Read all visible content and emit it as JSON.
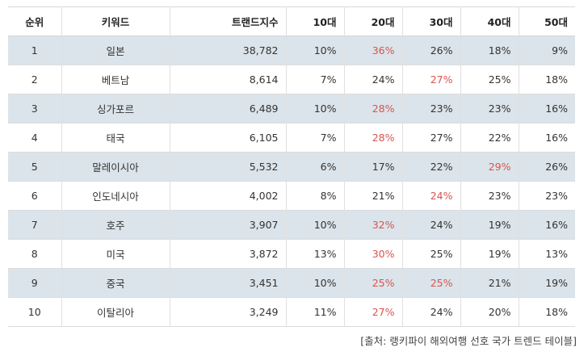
{
  "table": {
    "headers": [
      "순위",
      "키워드",
      "트랜드지수",
      "10대",
      "20대",
      "30대",
      "40대",
      "50대"
    ],
    "rows": [
      {
        "rank": "1",
        "keyword": "일본",
        "index": "38,782",
        "a10": "10%",
        "a20": "36%",
        "a30": "26%",
        "a40": "18%",
        "a50": "9%"
      },
      {
        "rank": "2",
        "keyword": "베트남",
        "index": "8,614",
        "a10": "7%",
        "a20": "24%",
        "a30": "27%",
        "a40": "25%",
        "a50": "18%"
      },
      {
        "rank": "3",
        "keyword": "싱가포르",
        "index": "6,489",
        "a10": "10%",
        "a20": "28%",
        "a30": "23%",
        "a40": "23%",
        "a50": "16%"
      },
      {
        "rank": "4",
        "keyword": "태국",
        "index": "6,105",
        "a10": "7%",
        "a20": "28%",
        "a30": "27%",
        "a40": "22%",
        "a50": "16%"
      },
      {
        "rank": "5",
        "keyword": "말레이시아",
        "index": "5,532",
        "a10": "6%",
        "a20": "17%",
        "a30": "22%",
        "a40": "29%",
        "a50": "26%"
      },
      {
        "rank": "6",
        "keyword": "인도네시아",
        "index": "4,002",
        "a10": "8%",
        "a20": "21%",
        "a30": "24%",
        "a40": "23%",
        "a50": "23%"
      },
      {
        "rank": "7",
        "keyword": "호주",
        "index": "3,907",
        "a10": "10%",
        "a20": "32%",
        "a30": "24%",
        "a40": "19%",
        "a50": "16%"
      },
      {
        "rank": "8",
        "keyword": "미국",
        "index": "3,872",
        "a10": "13%",
        "a20": "30%",
        "a30": "25%",
        "a40": "19%",
        "a50": "13%"
      },
      {
        "rank": "9",
        "keyword": "중국",
        "index": "3,451",
        "a10": "10%",
        "a20": "25%",
        "a30": "25%",
        "a40": "21%",
        "a50": "19%"
      },
      {
        "rank": "10",
        "keyword": "이탈리아",
        "index": "3,249",
        "a10": "11%",
        "a20": "27%",
        "a30": "24%",
        "a40": "20%",
        "a50": "18%"
      }
    ]
  },
  "colors": {
    "highlight": "#d9534f",
    "stripe": "#dbe4ea"
  },
  "source": "[출처: 랭키파이 해외여행 선호 국가 트렌드 테이블]"
}
